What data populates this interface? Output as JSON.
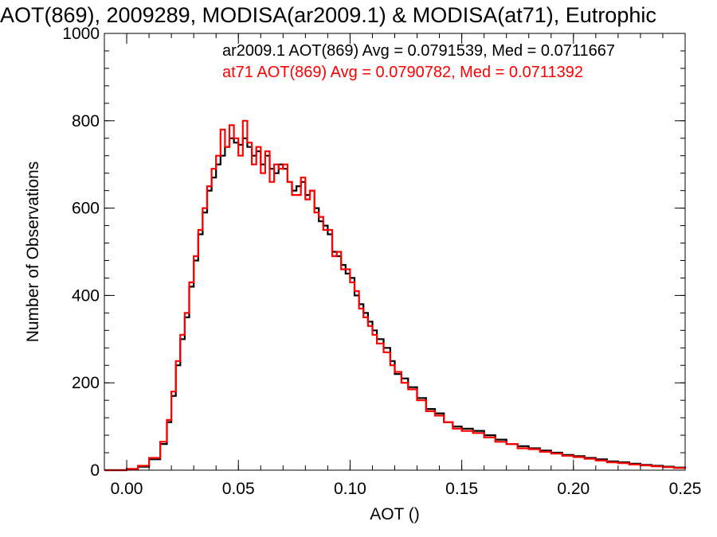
{
  "chart_data": {
    "type": "line",
    "title": "AOT(869), 2009289, MODISA(ar2009.1) & MODISA(at71), Eutrophic",
    "xlabel": "AOT ()",
    "ylabel": "Number of Observations",
    "xlim": [
      -0.01,
      0.25
    ],
    "ylim": [
      0,
      1000
    ],
    "x_ticks": [
      0.0,
      0.05,
      0.1,
      0.15,
      0.2,
      0.25
    ],
    "x_tick_labels": [
      "0.00",
      "0.05",
      "0.10",
      "0.15",
      "0.20",
      "0.25"
    ],
    "y_ticks": [
      0,
      200,
      400,
      600,
      800,
      1000
    ],
    "y_tick_labels": [
      "0",
      "200",
      "400",
      "600",
      "800",
      "1000"
    ],
    "grid": false,
    "legend_placement": "top-right",
    "step": true,
    "series": [
      {
        "name": "ar2009.1",
        "color": "#000000",
        "legend_text": "ar2009.1 AOT(869) Avg = 0.0791539, Med = 0.0711667",
        "x": [
          -0.01,
          0.0,
          0.005,
          0.01,
          0.015,
          0.018,
          0.02,
          0.022,
          0.024,
          0.026,
          0.028,
          0.03,
          0.032,
          0.034,
          0.036,
          0.038,
          0.04,
          0.042,
          0.044,
          0.046,
          0.048,
          0.05,
          0.052,
          0.054,
          0.056,
          0.058,
          0.06,
          0.062,
          0.064,
          0.066,
          0.068,
          0.07,
          0.072,
          0.074,
          0.076,
          0.078,
          0.08,
          0.082,
          0.084,
          0.086,
          0.088,
          0.09,
          0.092,
          0.094,
          0.096,
          0.098,
          0.1,
          0.102,
          0.104,
          0.106,
          0.108,
          0.11,
          0.112,
          0.115,
          0.118,
          0.12,
          0.123,
          0.126,
          0.13,
          0.134,
          0.138,
          0.142,
          0.146,
          0.15,
          0.155,
          0.16,
          0.165,
          0.17,
          0.175,
          0.18,
          0.185,
          0.19,
          0.195,
          0.2,
          0.205,
          0.21,
          0.215,
          0.22,
          0.225,
          0.23,
          0.235,
          0.24,
          0.245,
          0.25
        ],
        "y": [
          0,
          2,
          8,
          25,
          60,
          110,
          170,
          240,
          300,
          350,
          420,
          480,
          540,
          590,
          640,
          670,
          700,
          720,
          740,
          760,
          750,
          745,
          760,
          740,
          720,
          730,
          700,
          720,
          690,
          680,
          700,
          690,
          660,
          640,
          650,
          660,
          630,
          640,
          600,
          570,
          560,
          540,
          500,
          490,
          470,
          450,
          440,
          400,
          380,
          360,
          340,
          320,
          300,
          280,
          250,
          220,
          210,
          190,
          165,
          140,
          130,
          110,
          100,
          95,
          90,
          80,
          70,
          60,
          55,
          50,
          45,
          40,
          35,
          32,
          28,
          25,
          20,
          18,
          15,
          12,
          10,
          8,
          6,
          5
        ]
      },
      {
        "name": "at71",
        "color": "#ff0000",
        "legend_text": "at71 AOT(869) Avg = 0.0790782, Med = 0.0711392",
        "x": [
          -0.01,
          0.0,
          0.005,
          0.01,
          0.015,
          0.018,
          0.02,
          0.022,
          0.024,
          0.026,
          0.028,
          0.03,
          0.032,
          0.034,
          0.036,
          0.038,
          0.04,
          0.042,
          0.044,
          0.046,
          0.048,
          0.05,
          0.052,
          0.054,
          0.056,
          0.058,
          0.06,
          0.062,
          0.064,
          0.066,
          0.068,
          0.07,
          0.072,
          0.074,
          0.076,
          0.078,
          0.08,
          0.082,
          0.084,
          0.086,
          0.088,
          0.09,
          0.092,
          0.094,
          0.096,
          0.098,
          0.1,
          0.102,
          0.104,
          0.106,
          0.108,
          0.11,
          0.112,
          0.115,
          0.118,
          0.12,
          0.123,
          0.126,
          0.13,
          0.134,
          0.138,
          0.142,
          0.146,
          0.15,
          0.155,
          0.16,
          0.165,
          0.17,
          0.175,
          0.18,
          0.185,
          0.19,
          0.195,
          0.2,
          0.205,
          0.21,
          0.215,
          0.22,
          0.225,
          0.23,
          0.235,
          0.24,
          0.245,
          0.25
        ],
        "y": [
          0,
          3,
          10,
          28,
          65,
          115,
          180,
          250,
          310,
          360,
          430,
          490,
          550,
          600,
          650,
          690,
          720,
          780,
          740,
          790,
          760,
          720,
          800,
          750,
          700,
          740,
          680,
          730,
          660,
          700,
          690,
          700,
          660,
          630,
          630,
          670,
          620,
          640,
          590,
          580,
          550,
          550,
          490,
          500,
          460,
          460,
          430,
          410,
          370,
          350,
          330,
          310,
          290,
          270,
          240,
          225,
          200,
          185,
          160,
          135,
          125,
          110,
          95,
          90,
          85,
          75,
          65,
          60,
          50,
          48,
          42,
          38,
          33,
          30,
          26,
          22,
          18,
          16,
          13,
          11,
          9,
          7,
          5,
          4
        ]
      }
    ]
  }
}
